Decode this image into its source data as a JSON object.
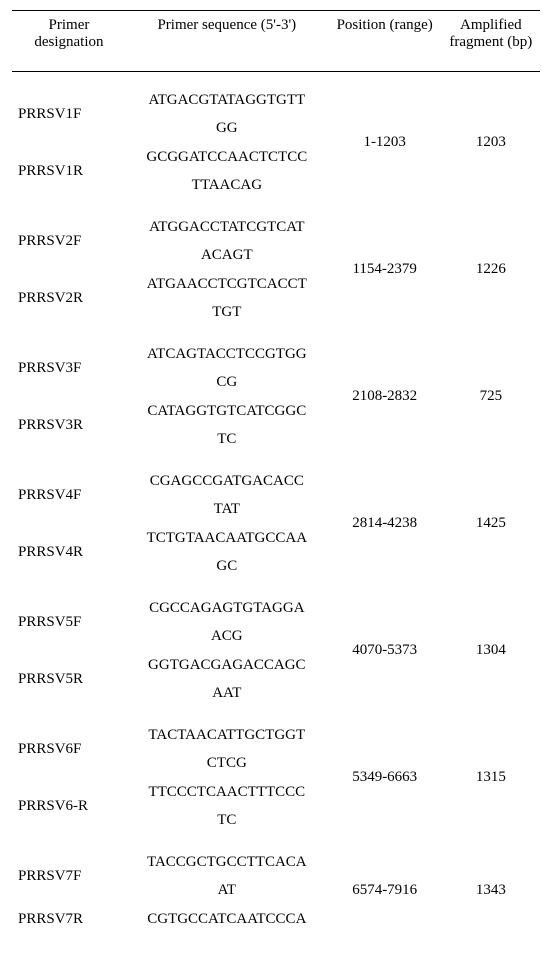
{
  "headers": {
    "designation": "Primer designation",
    "sequence": "Primer sequence (5'-3')",
    "position": "Position (range)",
    "amplified": "Amplified fragment (bp)"
  },
  "groups": [
    {
      "fwd_name": "PRRSV1F",
      "fwd_seq_line1": "ATGACGTATAGGTGTT",
      "fwd_seq_line2": "GG",
      "rev_name": "PRRSV1R",
      "rev_seq_line1": "GCGGATCCAACTCTCC",
      "rev_seq_line2": "TTAACAG",
      "position": "1-1203",
      "amplified": "1203"
    },
    {
      "fwd_name": "PRRSV2F",
      "fwd_seq_line1": "ATGGACCTATCGTCAT",
      "fwd_seq_line2": "ACAGT",
      "rev_name": "PRRSV2R",
      "rev_seq_line1": "ATGAACCTCGTCACCT",
      "rev_seq_line2": "TGT",
      "position": "1154-2379",
      "amplified": "1226"
    },
    {
      "fwd_name": "PRRSV3F",
      "fwd_seq_line1": "ATCAGTACCTCCGTGG",
      "fwd_seq_line2": "CG",
      "rev_name": "PRRSV3R",
      "rev_seq_line1": "CATAGGTGTCATCGGC",
      "rev_seq_line2": "TC",
      "position": "2108-2832",
      "amplified": "725"
    },
    {
      "fwd_name": "PRRSV4F",
      "fwd_seq_line1": "CGAGCCGATGACACC",
      "fwd_seq_line2": "TAT",
      "rev_name": "PRRSV4R",
      "rev_seq_line1": "TCTGTAACAATGCCAA",
      "rev_seq_line2": "GC",
      "position": "2814-4238",
      "amplified": "1425"
    },
    {
      "fwd_name": "PRRSV5F",
      "fwd_seq_line1": "CGCCAGAGTGTAGGA",
      "fwd_seq_line2": "ACG",
      "rev_name": "PRRSV5R",
      "rev_seq_line1": "GGTGACGAGACCAGC",
      "rev_seq_line2": "AAT",
      "position": "4070-5373",
      "amplified": "1304"
    },
    {
      "fwd_name": "PRRSV6F",
      "fwd_seq_line1": "TACTAACATTGCTGGT",
      "fwd_seq_line2": "CTCG",
      "rev_name": "PRRSV6-R",
      "rev_seq_line1": "TTCCCTCAACTTTCCC",
      "rev_seq_line2": "TC",
      "position": "5349-6663",
      "amplified": "1315"
    },
    {
      "fwd_name": "PRRSV7F",
      "fwd_seq_line1": "TACCGCTGCCTTCACA",
      "fwd_seq_line2": "AT",
      "rev_name": "PRRSV7R",
      "rev_seq_line1": "CGTGCCATCAATCCCA",
      "rev_seq_line2": "",
      "position": "6574-7916",
      "amplified": "1343"
    }
  ]
}
